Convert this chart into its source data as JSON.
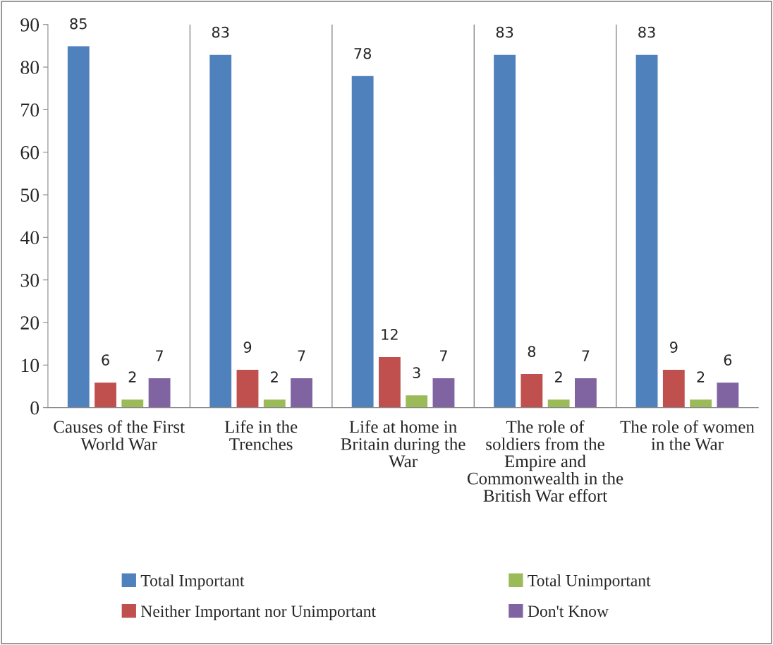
{
  "chart_data": {
    "type": "bar",
    "categories": [
      "Causes of the First World War",
      "Life in the Trenches",
      "Life at home in Britain during the War",
      "The role of soldiers from the Empire and Commonwealth in the British War effort",
      "The role of women in the War"
    ],
    "series": [
      {
        "name": "Total Important",
        "color": "#4f81bd",
        "values": [
          85,
          83,
          78,
          83,
          83
        ]
      },
      {
        "name": "Neither Important nor Unimportant",
        "color": "#c0504d",
        "values": [
          6,
          9,
          12,
          8,
          9
        ]
      },
      {
        "name": "Total Unimportant",
        "color": "#9bbb59",
        "values": [
          2,
          2,
          3,
          2,
          2
        ]
      },
      {
        "name": "Don't Know",
        "color": "#8064a2",
        "values": [
          7,
          7,
          7,
          7,
          6
        ]
      }
    ],
    "ylim": [
      0,
      90
    ],
    "yticks": [
      0,
      10,
      20,
      30,
      40,
      50,
      60,
      70,
      80,
      90
    ],
    "data_labels": true,
    "grid": "x",
    "legend": "bottom"
  }
}
